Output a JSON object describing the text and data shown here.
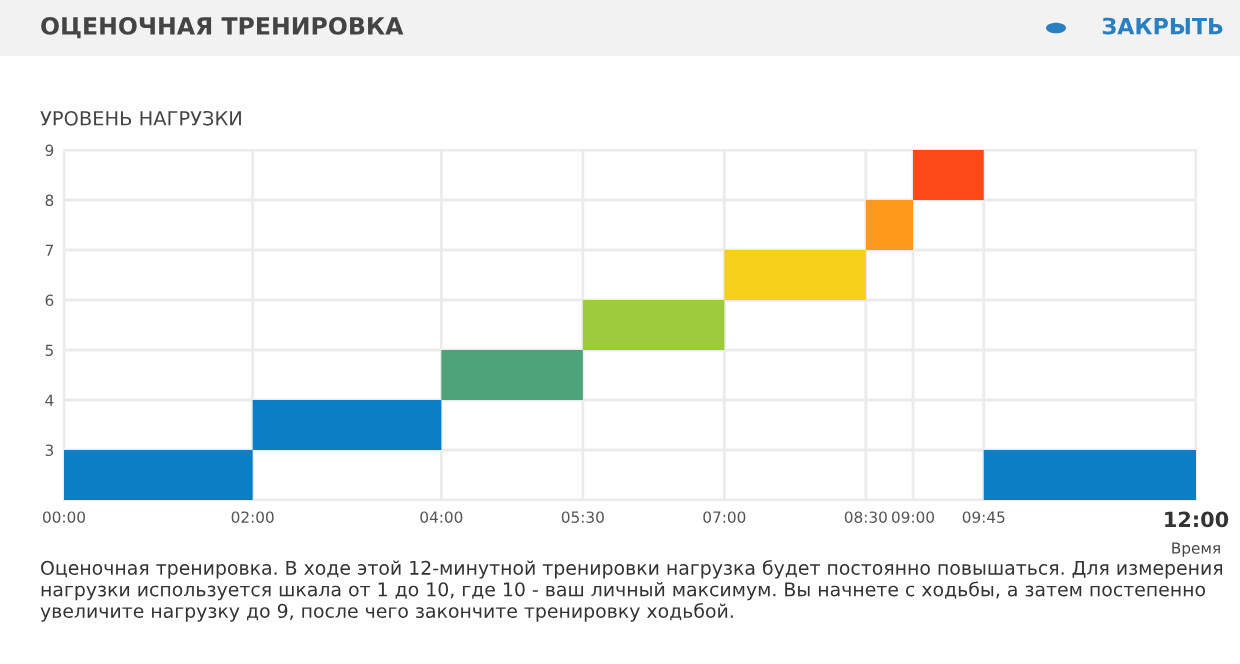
{
  "chart_data": {
    "type": "bar",
    "title": "ОЦЕНОЧНАЯ ТРЕНИРОВКА",
    "xlabel": "Время",
    "ylabel": "УРОВЕНЬ НАГРУЗКИ",
    "annotations": [
      "ЗАКРЫТЬ",
      "Оценочная тренировка. В ходе этой 12-минутной тренировки нагрузка будет постоянно повышаться. Для измерения нагрузки используется шкала от 1 до 10, где 10 - ваш личный максимум. Вы начнете с ходьбы, а затем постепенно увеличите нагрузку до 9, после чего закончите тренировку ходьбой."
    ],
    "x": [
      1,
      3,
      4.75,
      6.25,
      7.75,
      8.75,
      9.375,
      10.875
    ],
    "base": [
      2,
      3,
      4,
      5,
      6,
      7,
      8,
      2
    ],
    "values": [
      1,
      1,
      1,
      1,
      1,
      1,
      1,
      1
    ],
    "colors": [
      "#0a7fc6",
      "#0a7fc6",
      "#4ea27a",
      "#9ccb3c",
      "#f5cf1a",
      "#ff9a1e",
      "#ff4a18",
      "#0a7fc6"
    ],
    "xlim": [
      0,
      12
    ],
    "xticks": [
      {
        "value": 0,
        "label": "00:00"
      },
      {
        "value": 2,
        "label": "02:00"
      },
      {
        "value": 4,
        "label": "04:00"
      },
      {
        "value": 5.5,
        "label": "05:30"
      },
      {
        "value": 7,
        "label": "07:00"
      },
      {
        "value": 8.5,
        "label": "08:30"
      },
      {
        "value": 9,
        "label": "09:00"
      },
      {
        "value": 9.75,
        "label": "09:45"
      },
      {
        "value": 12,
        "label": "12:00"
      }
    ],
    "ylim": [
      2,
      9
    ],
    "yticks": [
      {
        "value": 2,
        "label": null
      },
      3,
      4,
      5,
      6,
      7,
      8,
      9
    ],
    "grid": true
  }
}
